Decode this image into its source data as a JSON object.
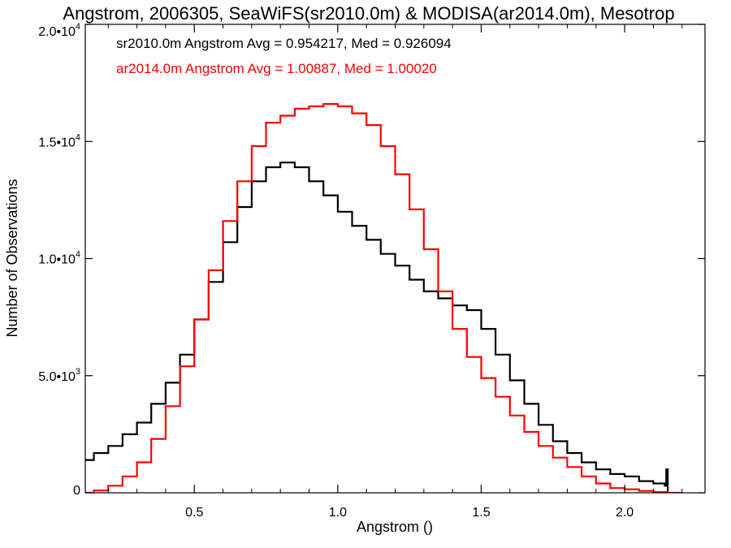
{
  "chart_data": {
    "type": "line",
    "title": "Angstrom, 2006305, SeaWiFS(sr2010.0m) & MODISA(ar2014.0m), Mesotrop",
    "xlabel": "Angstrom ()",
    "ylabel": "Number of Observations",
    "xlim": [
      0.12,
      2.28
    ],
    "ylim": [
      0,
      20000
    ],
    "grid": false,
    "step": true,
    "x_ticks": [
      {
        "value": 0.5,
        "label": "0.5"
      },
      {
        "value": 1.0,
        "label": "1.0"
      },
      {
        "value": 1.5,
        "label": "1.5"
      },
      {
        "value": 2.0,
        "label": "2.0"
      }
    ],
    "y_ticks": [
      {
        "value": 0,
        "label": "0",
        "exp": ""
      },
      {
        "value": 5000,
        "label": "5.0•10",
        "exp": "3"
      },
      {
        "value": 10000,
        "label": "1.0•10",
        "exp": "4"
      },
      {
        "value": 15000,
        "label": "1.5•10",
        "exp": "4"
      },
      {
        "value": 20000,
        "label": "2.0•10",
        "exp": "4"
      }
    ],
    "annotations": [
      {
        "text": "sr2010.0m Angstrom Avg = 0.954217, Med = 0.926094",
        "color": "#000000"
      },
      {
        "text": "ar2014.0m Angstrom Avg = 1.00887, Med = 1.00020",
        "color": "#ff0000"
      }
    ],
    "series": [
      {
        "color": "#000000",
        "x": [
          0.12,
          0.15,
          0.2,
          0.25,
          0.3,
          0.35,
          0.4,
          0.45,
          0.5,
          0.55,
          0.6,
          0.65,
          0.7,
          0.75,
          0.8,
          0.82,
          0.85,
          0.9,
          0.95,
          1.0,
          1.05,
          1.1,
          1.15,
          1.2,
          1.25,
          1.3,
          1.35,
          1.4,
          1.45,
          1.5,
          1.55,
          1.6,
          1.65,
          1.7,
          1.75,
          1.8,
          1.85,
          1.9,
          1.95,
          2.0,
          2.05,
          2.1,
          2.14,
          2.145,
          2.15
        ],
        "y": [
          1400,
          1700,
          2000,
          2500,
          3000,
          3800,
          4700,
          5900,
          7400,
          9000,
          10700,
          12200,
          13300,
          13900,
          14100,
          14100,
          13900,
          13300,
          12700,
          12000,
          11400,
          10800,
          10200,
          9700,
          9100,
          8600,
          8300,
          8000,
          7800,
          7000,
          5900,
          4800,
          3800,
          2900,
          2200,
          1700,
          1300,
          1000,
          800,
          700,
          500,
          400,
          300,
          1000,
          0
        ]
      },
      {
        "color": "#ff0000",
        "x": [
          0.12,
          0.15,
          0.2,
          0.25,
          0.3,
          0.35,
          0.4,
          0.45,
          0.5,
          0.55,
          0.6,
          0.65,
          0.7,
          0.75,
          0.8,
          0.85,
          0.9,
          0.95,
          1.0,
          1.05,
          1.1,
          1.15,
          1.2,
          1.25,
          1.3,
          1.35,
          1.4,
          1.45,
          1.5,
          1.55,
          1.6,
          1.65,
          1.7,
          1.75,
          1.8,
          1.85,
          1.9,
          1.95,
          2.0,
          2.05,
          2.1,
          2.15,
          2.2
        ],
        "y": [
          0,
          100,
          300,
          700,
          1300,
          2300,
          3700,
          5400,
          7400,
          9500,
          11600,
          13300,
          14800,
          15800,
          16100,
          16400,
          16500,
          16600,
          16500,
          16200,
          15700,
          14800,
          13600,
          12100,
          10400,
          8600,
          7000,
          5800,
          4900,
          4100,
          3300,
          2600,
          2000,
          1500,
          1100,
          700,
          400,
          200,
          150,
          80,
          30,
          0,
          0
        ]
      }
    ]
  }
}
